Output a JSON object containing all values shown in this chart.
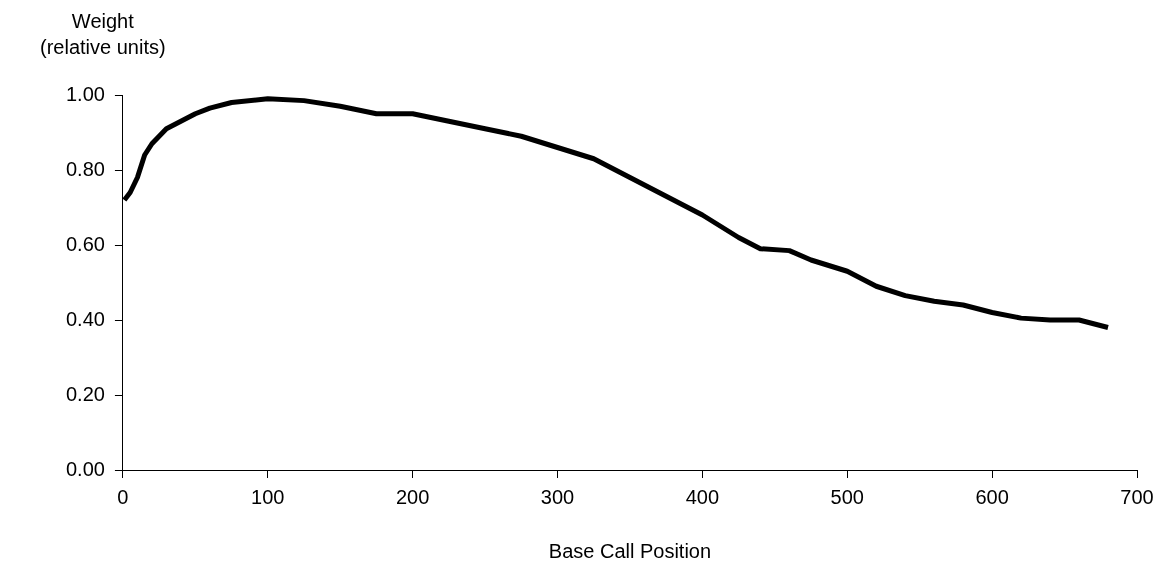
{
  "chart_data": {
    "type": "line",
    "xlabel": "Base Call Position",
    "ylabel": "Weight\n(relative units)",
    "x": [
      1,
      5,
      10,
      15,
      20,
      30,
      40,
      50,
      60,
      75,
      100,
      125,
      150,
      175,
      200,
      225,
      250,
      275,
      300,
      325,
      350,
      375,
      400,
      425,
      440,
      460,
      475,
      500,
      520,
      540,
      560,
      580,
      600,
      620,
      640,
      660,
      670,
      680
    ],
    "series": [
      {
        "color": "#000000",
        "values": [
          0.72,
          0.74,
          0.78,
          0.84,
          0.87,
          0.91,
          0.93,
          0.95,
          0.965,
          0.98,
          0.99,
          0.985,
          0.97,
          0.95,
          0.95,
          0.93,
          0.91,
          0.89,
          0.86,
          0.83,
          0.78,
          0.73,
          0.68,
          0.62,
          0.59,
          0.585,
          0.56,
          0.53,
          0.49,
          0.465,
          0.45,
          0.44,
          0.42,
          0.405,
          0.4,
          0.4,
          0.39,
          0.38
        ]
      }
    ],
    "xlim": [
      0,
      700
    ],
    "xticks": [
      0,
      100,
      200,
      300,
      400,
      500,
      600,
      700
    ],
    "ylim": [
      0,
      1
    ],
    "yticks": [
      {
        "value": 0,
        "label": "0.00"
      },
      {
        "value": 0.2,
        "label": "0.20"
      },
      {
        "value": 0.4,
        "label": "0.40"
      },
      {
        "value": 0.6,
        "label": "0.60"
      },
      {
        "value": 0.8,
        "label": "0.80"
      },
      {
        "value": 1,
        "label": "1.00"
      }
    ],
    "grid": false,
    "legend": false,
    "marker": "none",
    "line_style": "solid"
  }
}
